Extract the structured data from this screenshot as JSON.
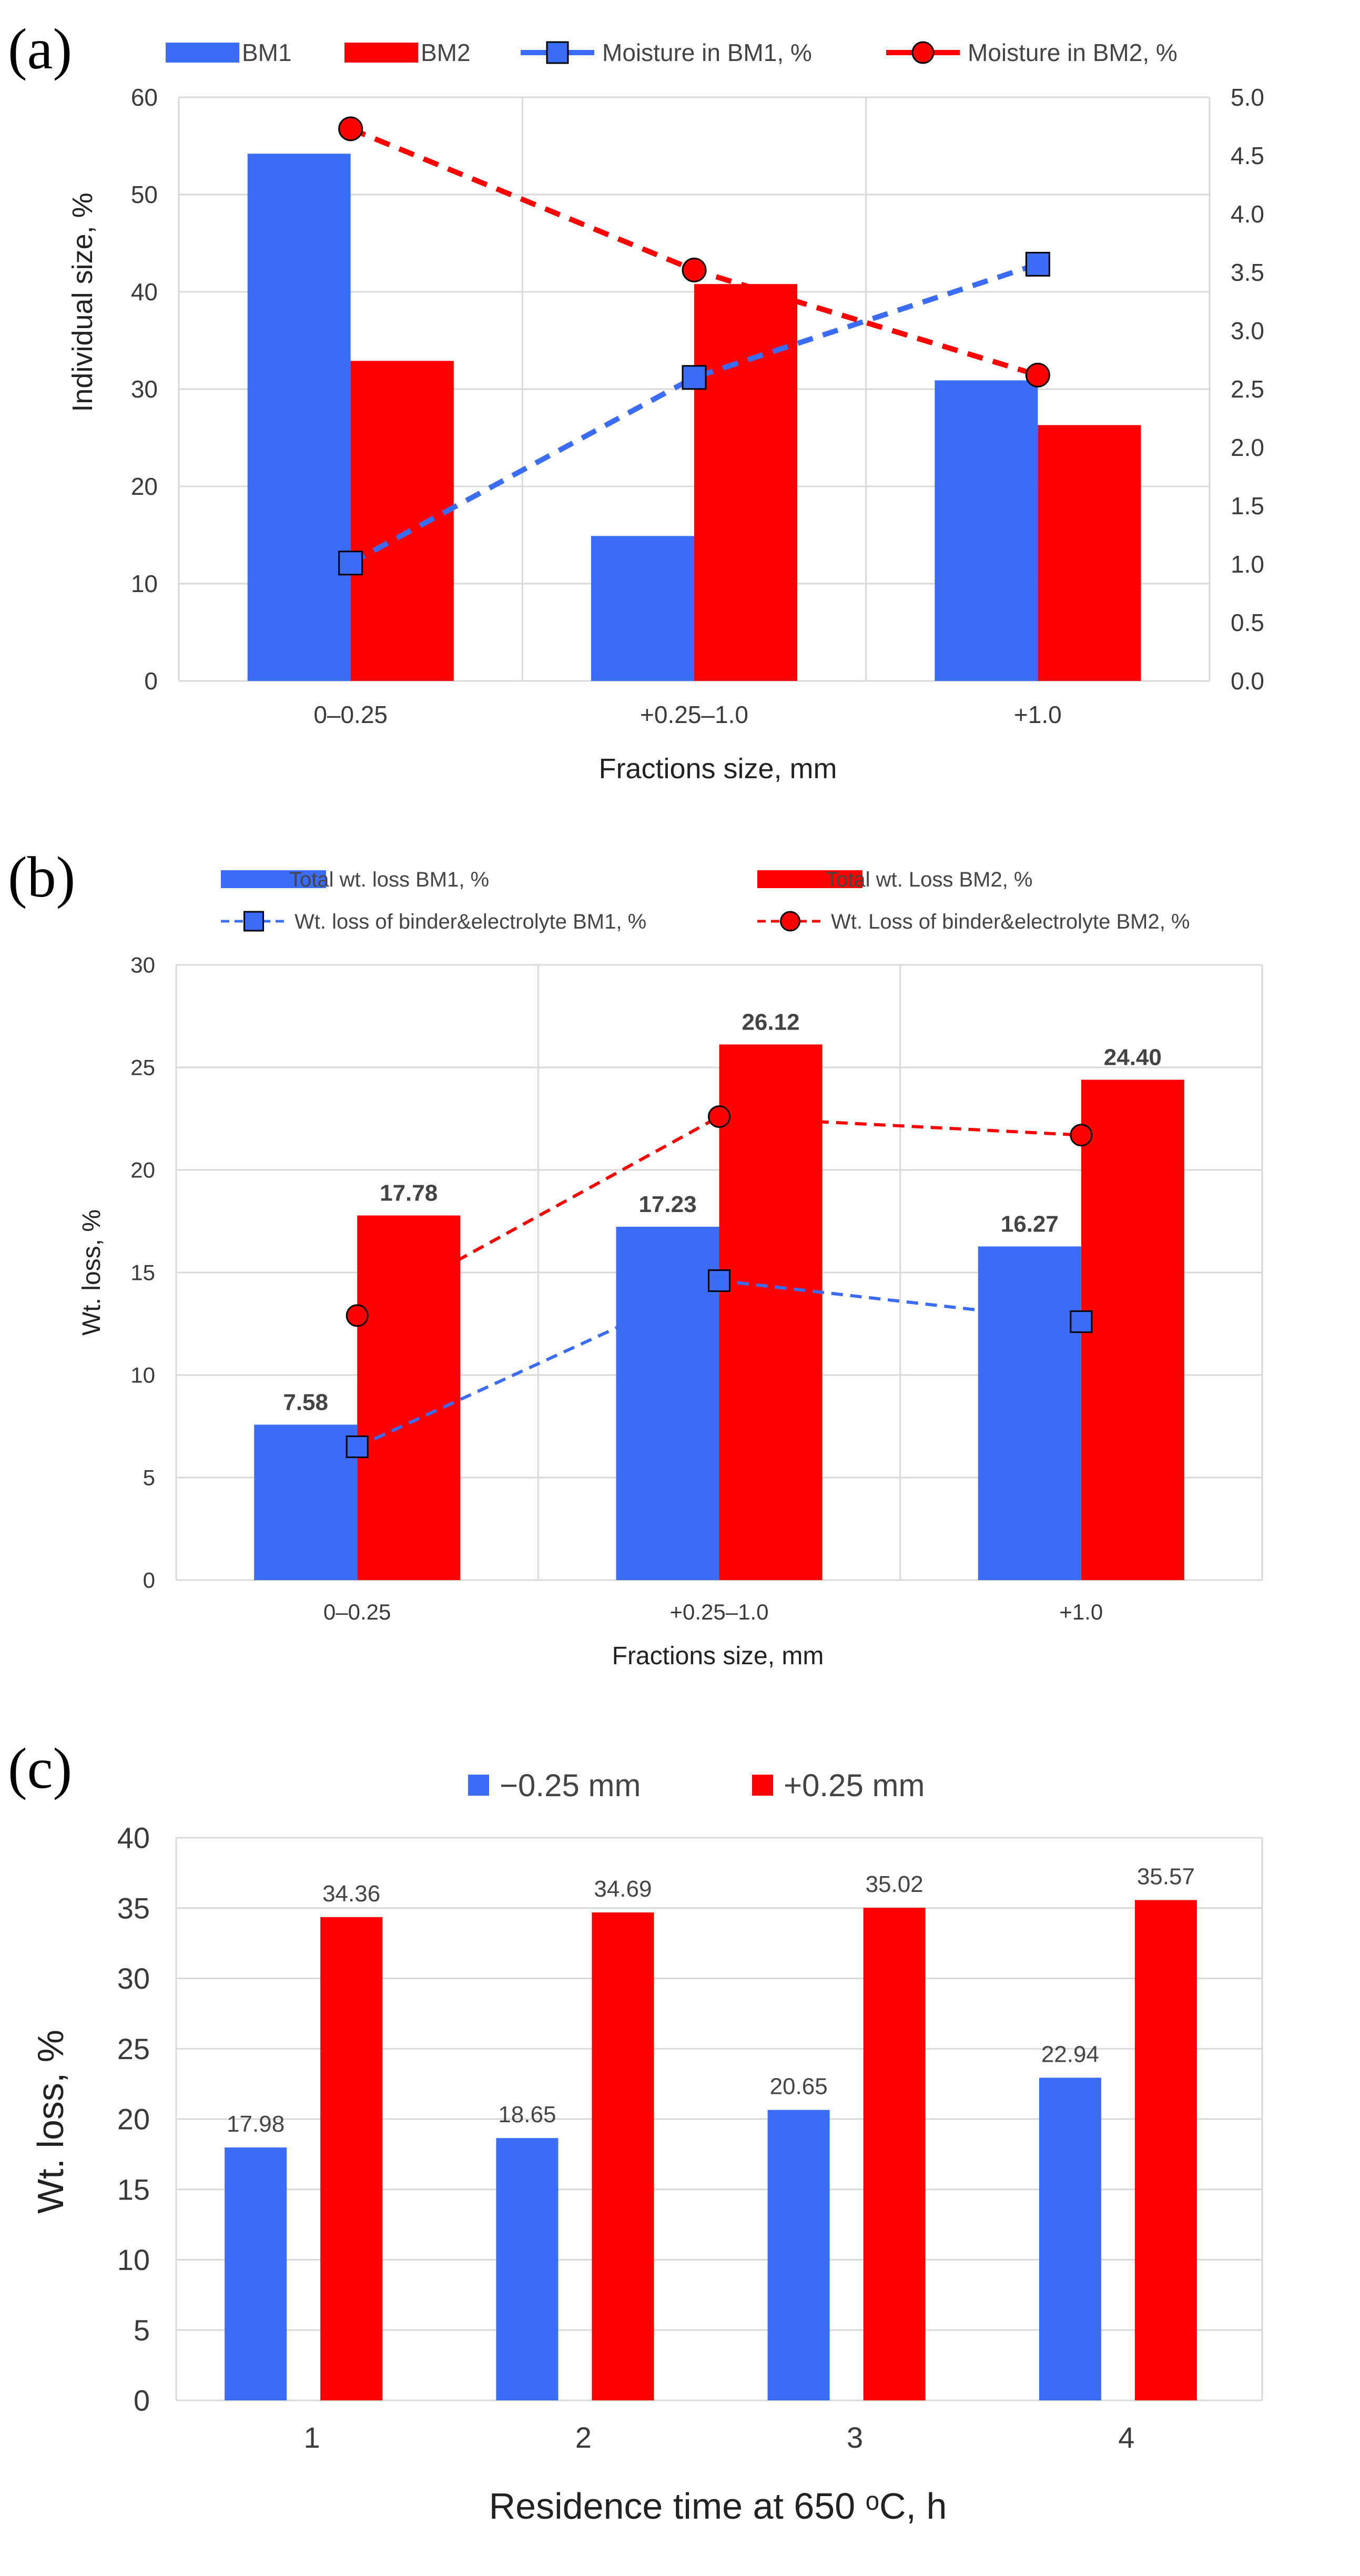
{
  "colors": {
    "bm1": "#3b6cf5",
    "bm2": "#ff0000",
    "grid": "#d9d9d9"
  },
  "chart_data": [
    {
      "id": "a",
      "panel_label": "(a)",
      "type": "bar",
      "categories": [
        "0–0.25",
        "+0.25–1.0",
        "+1.0"
      ],
      "series": [
        {
          "name": "BM1",
          "kind": "bar",
          "axis": "left",
          "values": [
            54.2,
            14.9,
            30.9
          ]
        },
        {
          "name": "BM2",
          "kind": "bar",
          "axis": "left",
          "values": [
            32.9,
            40.8,
            26.3
          ]
        },
        {
          "name": "Moisture in BM1, %",
          "kind": "line",
          "axis": "right",
          "marker": "square",
          "values": [
            1.01,
            2.6,
            3.57
          ]
        },
        {
          "name": "Moisture in BM2, %",
          "kind": "line",
          "axis": "right",
          "marker": "circle",
          "values": [
            4.73,
            3.52,
            2.62
          ]
        }
      ],
      "xlabel": "Fractions size, mm",
      "ylabel": "Individual size, %",
      "ylim": [
        0,
        60
      ],
      "yticks": [
        "0",
        "10",
        "20",
        "30",
        "40",
        "50",
        "60"
      ],
      "y2lim": [
        0,
        5
      ],
      "y2ticks": [
        "0.0",
        "0.5",
        "1.0",
        "1.5",
        "2.0",
        "2.5",
        "3.0",
        "3.5",
        "4.0",
        "4.5",
        "5.0"
      ],
      "legend_position": "top"
    },
    {
      "id": "b",
      "panel_label": "(b)",
      "type": "bar",
      "categories": [
        "0–0.25",
        "+0.25–1.0",
        "+1.0"
      ],
      "series": [
        {
          "name": "Total wt. loss BM1, %",
          "kind": "bar",
          "values": [
            7.58,
            17.23,
            16.27
          ],
          "labels": [
            "7.58",
            "17.23",
            "16.27"
          ]
        },
        {
          "name": "Total wt. Loss BM2, %",
          "kind": "bar",
          "values": [
            17.78,
            26.12,
            24.4
          ],
          "labels": [
            "17.78",
            "26.12",
            "24.40"
          ]
        },
        {
          "name": "Wt. loss of binder&electrolyte BM1, %",
          "kind": "line",
          "marker": "square",
          "values": [
            6.5,
            14.6,
            12.6
          ]
        },
        {
          "name": "Wt. Loss of binder&electrolyte BM2, %",
          "kind": "line",
          "marker": "circle",
          "values": [
            12.9,
            22.6,
            21.7
          ]
        }
      ],
      "xlabel": "Fractions size, mm",
      "ylabel": "Wt. loss, %",
      "ylim": [
        0,
        30
      ],
      "yticks": [
        "0",
        "5",
        "10",
        "15",
        "20",
        "25",
        "30"
      ],
      "legend_position": "top"
    },
    {
      "id": "c",
      "panel_label": "(c)",
      "type": "bar",
      "categories": [
        "1",
        "2",
        "3",
        "4"
      ],
      "series": [
        {
          "name": "−0.25 mm",
          "kind": "bar",
          "values": [
            17.98,
            18.65,
            20.65,
            22.94
          ],
          "labels": [
            "17.98",
            "18.65",
            "20.65",
            "22.94"
          ]
        },
        {
          "name": "+0.25 mm",
          "kind": "bar",
          "values": [
            34.36,
            34.69,
            35.02,
            35.57
          ],
          "labels": [
            "34.36",
            "34.69",
            "35.02",
            "35.57"
          ]
        }
      ],
      "xlabel": "Residence time at 650 ᵒC, h",
      "ylabel": "Wt. loss, %",
      "ylim": [
        0,
        40
      ],
      "yticks": [
        "0",
        "5",
        "10",
        "15",
        "20",
        "25",
        "30",
        "35",
        "40"
      ],
      "legend_position": "top"
    }
  ]
}
